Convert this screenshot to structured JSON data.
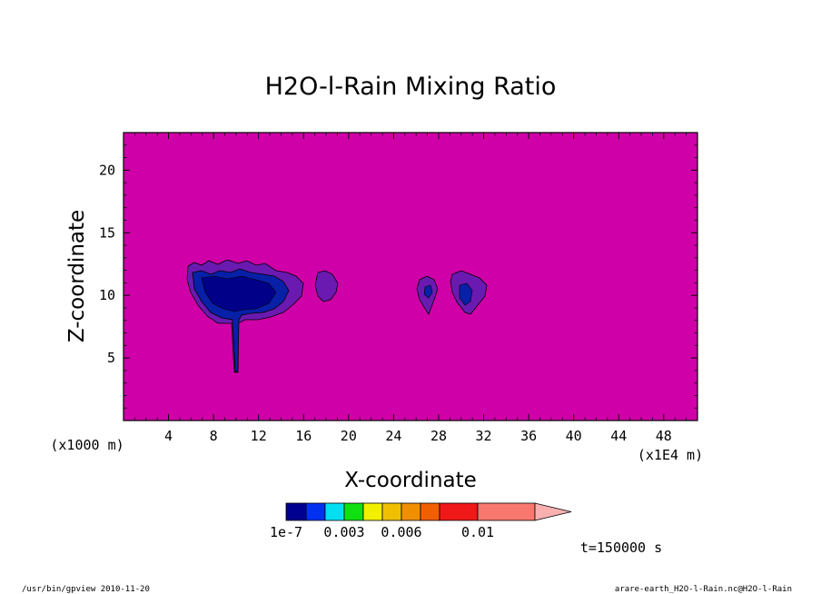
{
  "chart_data": {
    "type": "heatmap",
    "title": "H2O-l-Rain Mixing Ratio",
    "xlabel": "X-coordinate",
    "ylabel": "Z-coordinate",
    "x_unit_label": "(x1E4 m)",
    "y_unit_label": "(x1000 m)",
    "xlim": [
      0,
      51
    ],
    "ylim": [
      0,
      23
    ],
    "x_ticks": [
      4,
      8,
      12,
      16,
      20,
      24,
      28,
      32,
      36,
      40,
      44,
      48
    ],
    "y_ticks": [
      5,
      10,
      15,
      20
    ],
    "background_color": "#d000a8",
    "colorbar": {
      "colors": [
        "#000090",
        "#0030f0",
        "#00e0f0",
        "#10e010",
        "#f0f000",
        "#f0c000",
        "#f09000",
        "#f06000",
        "#f01818",
        "#f87870",
        "#f8b0b0"
      ],
      "labels": [
        "1e-7",
        "0.003",
        "0.006",
        "0.01"
      ],
      "extend": "max"
    },
    "rain_regions": [
      {
        "name": "main-cell",
        "x_center": 10.5,
        "z_center": 10.2,
        "x_extent": [
          5.5,
          15.5
        ],
        "z_extent": [
          3.8,
          12.4
        ],
        "level": "low"
      },
      {
        "name": "cell-18",
        "x_center": 18.0,
        "z_center": 10.5,
        "x_extent": [
          17.0,
          19.2
        ],
        "z_extent": [
          9.3,
          11.8
        ],
        "level": "trace"
      },
      {
        "name": "cell-27",
        "x_center": 27.0,
        "z_center": 10.0,
        "x_extent": [
          26.0,
          28.3
        ],
        "z_extent": [
          8.3,
          11.5
        ],
        "level": "trace"
      },
      {
        "name": "cell-30",
        "x_center": 30.3,
        "z_center": 10.0,
        "x_extent": [
          29.2,
          32.3
        ],
        "z_extent": [
          8.3,
          11.8
        ],
        "level": "low"
      }
    ]
  },
  "annotations": {
    "time": "t=150000 s",
    "footer_left": "/usr/bin/gpview   2010-11-20",
    "footer_right": "arare-earth_H2O-l-Rain.nc@H2O-l-Rain"
  }
}
